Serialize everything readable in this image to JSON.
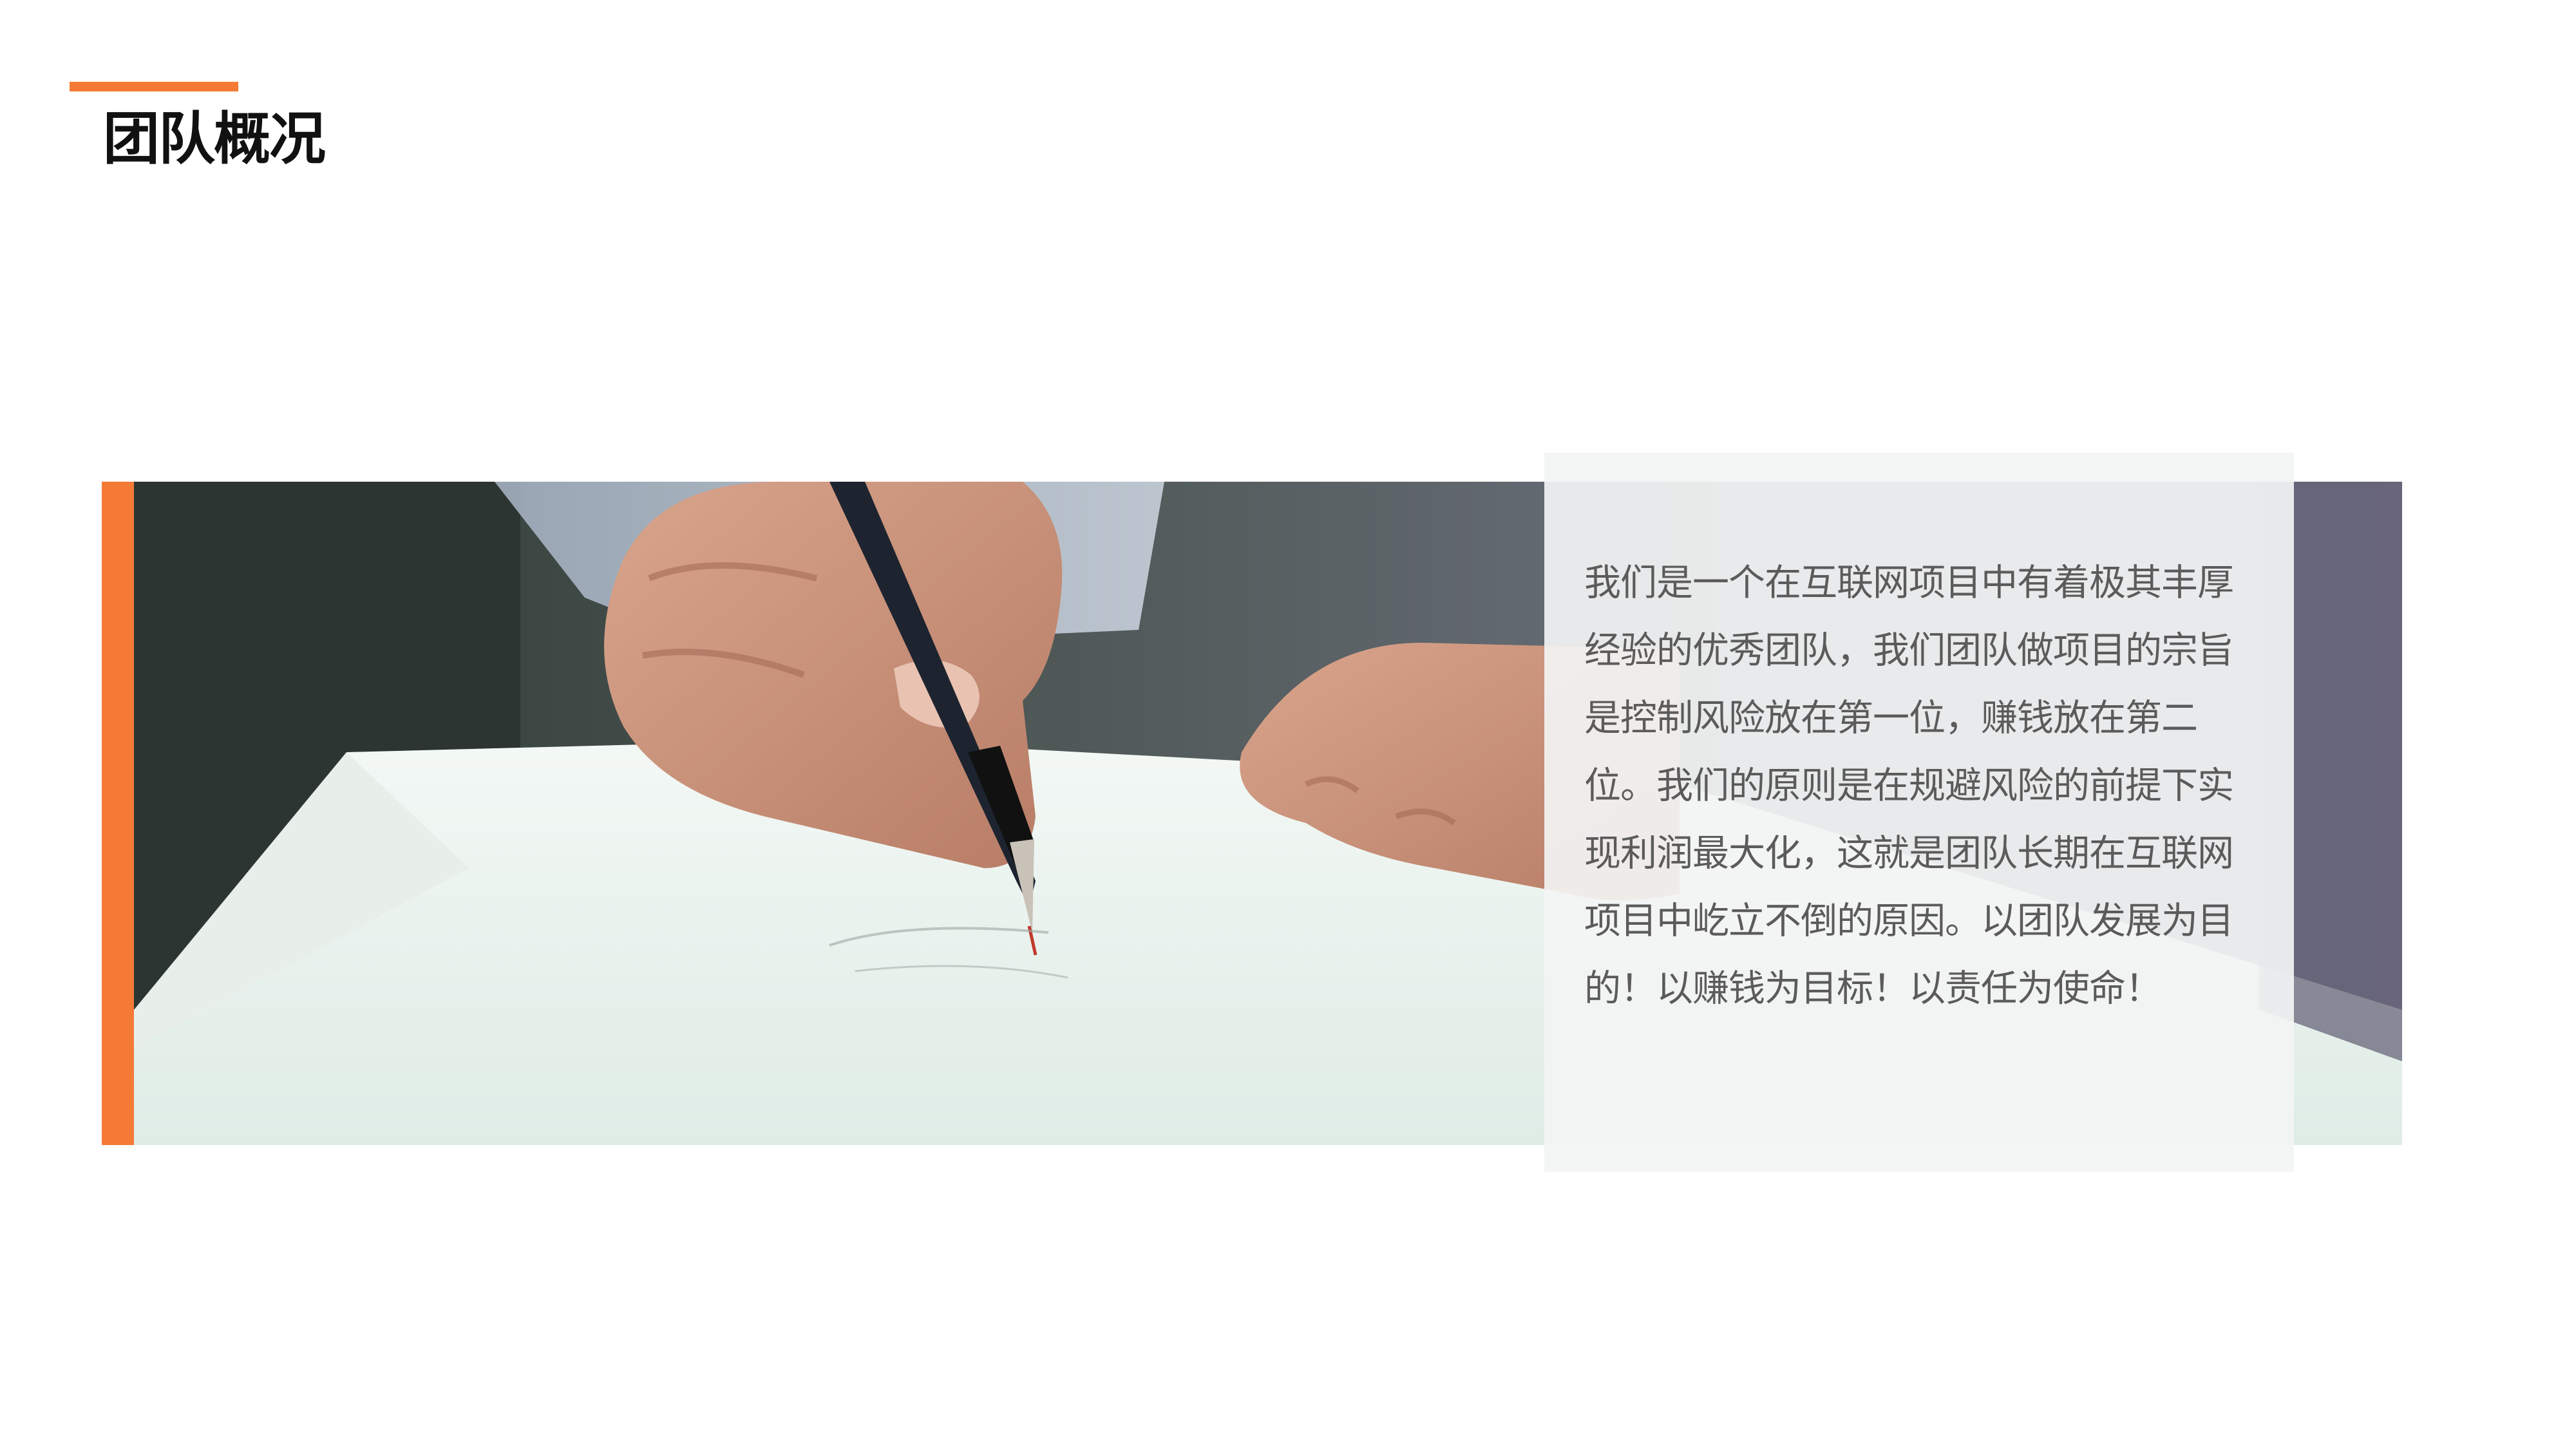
{
  "slide": {
    "title": "团队概况",
    "accent_color": "#f47a36"
  },
  "photo": {
    "subject": "hand-writing-with-pen-on-paper"
  },
  "panel": {
    "text": "我们是一个在互联网项目中有着极其丰厚经验的优秀团队，我们团队做项目的宗旨是控制风险放在第一位，赚钱放在第二位。我们的原则是在规避风险的前提下实现利润最大化，这就是团队长期在互联网项目中屹立不倒的原因。以团队发展为目的！以赚钱为目标！以责任为使命！"
  }
}
